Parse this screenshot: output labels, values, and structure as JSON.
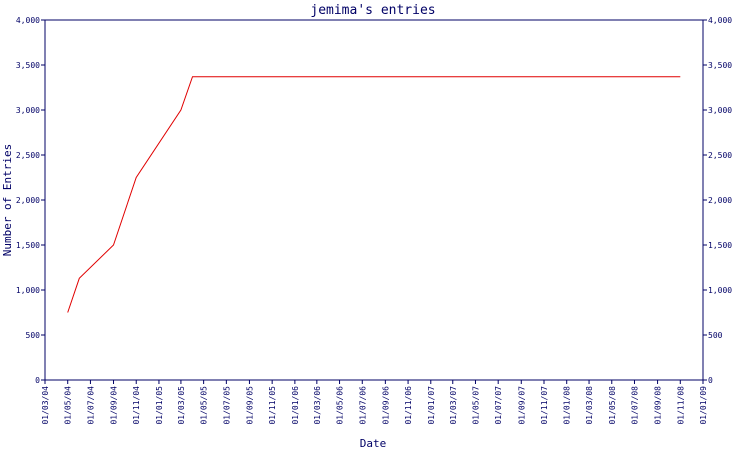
{
  "chart_data": {
    "type": "line",
    "title": "jemima's entries",
    "xlabel": "Date",
    "ylabel": "Number of Entries",
    "xlim": [
      "01/03/04",
      "01/01/09"
    ],
    "ylim": [
      0,
      4000
    ],
    "y_ticks": [
      0,
      500,
      1000,
      1500,
      2000,
      2500,
      3000,
      3500,
      4000
    ],
    "y_tick_labels": [
      "0",
      "500",
      "1,000",
      "1,500",
      "2,000",
      "2,500",
      "3,000",
      "3,500",
      "4,000"
    ],
    "x_tick_labels": [
      "01/03/04",
      "01/05/04",
      "01/07/04",
      "01/09/04",
      "01/11/04",
      "01/01/05",
      "01/03/05",
      "01/05/05",
      "01/07/05",
      "01/09/05",
      "01/11/05",
      "01/01/06",
      "01/03/06",
      "01/05/06",
      "01/07/06",
      "01/09/06",
      "01/11/06",
      "01/01/07",
      "01/03/07",
      "01/05/07",
      "01/07/07",
      "01/09/07",
      "01/11/07",
      "01/01/08",
      "01/03/08",
      "01/05/08",
      "01/07/08",
      "01/09/08",
      "01/11/08",
      "01/01/09"
    ],
    "right_axis_mirror": true,
    "grid": false,
    "series": [
      {
        "color": "#e00000",
        "x": [
          "01/05/04",
          "01/06/04",
          "01/09/04",
          "01/11/04",
          "01/03/05",
          "01/04/05",
          "01/11/08"
        ],
        "y": [
          750,
          1130,
          1500,
          2250,
          3000,
          3370,
          3370
        ]
      }
    ]
  }
}
